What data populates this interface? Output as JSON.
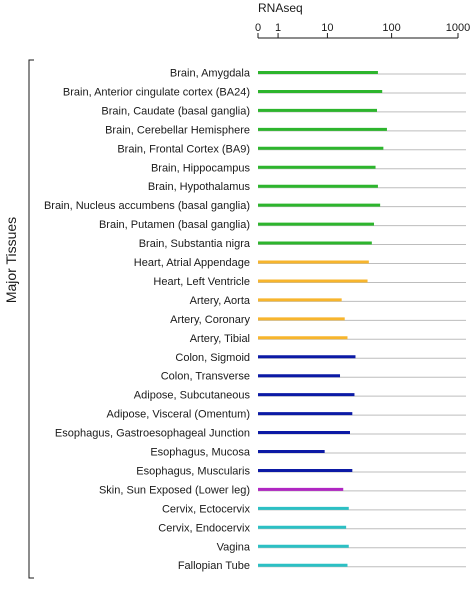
{
  "chart_data": {
    "type": "bar",
    "orientation": "horizontal",
    "x_axis": {
      "label": "RNAseq",
      "scale": "log(1+x)",
      "position": "top",
      "ticks": [
        0,
        1,
        10,
        100,
        1000
      ],
      "tick_labels": [
        "0",
        "1",
        "10",
        "100",
        "1000"
      ],
      "range": [
        0,
        1000
      ]
    },
    "group_label": "Major Tissues",
    "grid": "horizontal row lines",
    "categories": [
      "Brain, Amygdala",
      "Brain, Anterior cingulate cortex (BA24)",
      "Brain, Caudate (basal ganglia)",
      "Brain, Cerebellar Hemisphere",
      "Brain, Frontal Cortex (BA9)",
      "Brain, Hippocampus",
      "Brain, Hypothalamus",
      "Brain, Nucleus accumbens (basal ganglia)",
      "Brain, Putamen (basal ganglia)",
      "Brain, Substantia nigra",
      "Heart, Atrial Appendage",
      "Heart, Left Ventricle",
      "Artery, Aorta",
      "Artery, Coronary",
      "Artery, Tibial",
      "Colon, Sigmoid",
      "Colon, Transverse",
      "Adipose, Subcutaneous",
      "Adipose, Visceral (Omentum)",
      "Esophagus, Gastroesophageal Junction",
      "Esophagus, Mucosa",
      "Esophagus, Muscularis",
      "Skin, Sun Exposed (Lower leg)",
      "Cervix, Ectocervix",
      "Cervix, Endocervix",
      "Vagina",
      "Fallopian Tube"
    ],
    "values": [
      62,
      72,
      60,
      85,
      75,
      57,
      62,
      67,
      54,
      50,
      45,
      43,
      17,
      19,
      21,
      28,
      16,
      27,
      25,
      23,
      9,
      25,
      18,
      22,
      20,
      22,
      21
    ],
    "groups": [
      "brain",
      "brain",
      "brain",
      "brain",
      "brain",
      "brain",
      "brain",
      "brain",
      "brain",
      "brain",
      "heart",
      "heart",
      "heart",
      "heart",
      "heart",
      "digestive",
      "digestive",
      "digestive",
      "digestive",
      "digestive",
      "digestive",
      "digestive",
      "skin",
      "reproductive",
      "reproductive",
      "reproductive",
      "reproductive"
    ],
    "group_colors": {
      "brain": "#2db52d",
      "heart": "#f7b52d",
      "digestive": "#0c1aa5",
      "skin": "#b026c2",
      "reproductive": "#2cc0c4"
    },
    "grid_color": "#bdbdbd"
  }
}
